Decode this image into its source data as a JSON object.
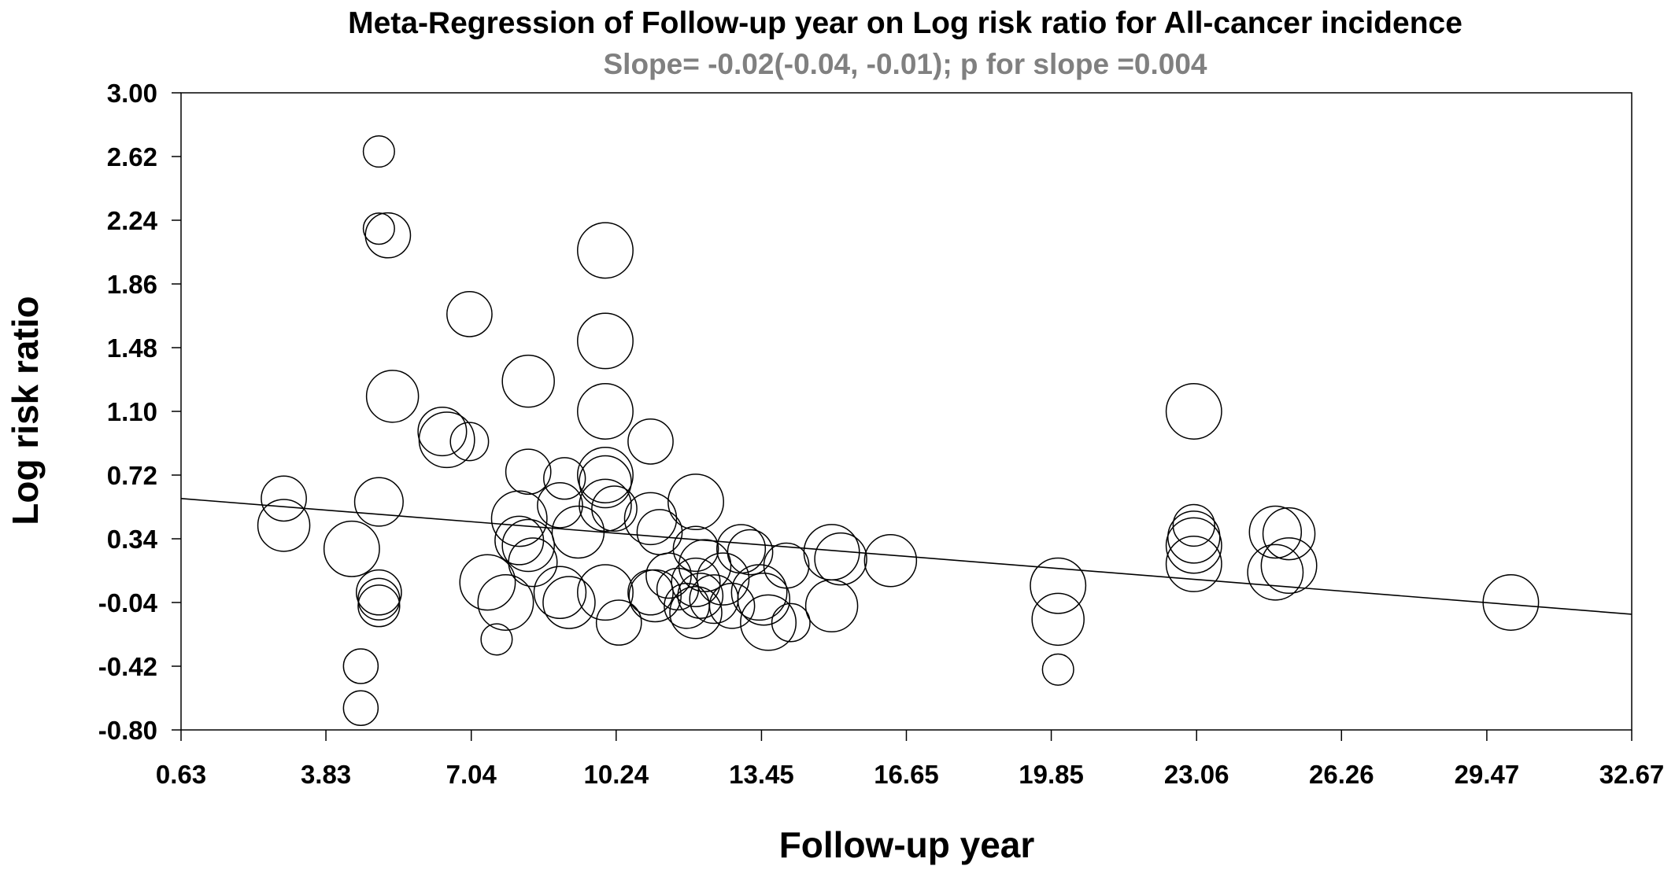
{
  "chart_data": {
    "type": "scatter",
    "title": "Meta-Regression of Follow-up year on Log risk ratio for  All-cancer incidence",
    "subtitle": "Slope= -0.02(-0.04, -0.01); p for slope =0.004",
    "xlabel": "Follow-up year",
    "ylabel": "Log risk ratio",
    "xlim": [
      0.63,
      32.67
    ],
    "ylim": [
      -0.8,
      3.0
    ],
    "x_ticks": [
      "0.63",
      "3.83",
      "7.04",
      "10.24",
      "13.45",
      "16.65",
      "19.85",
      "23.06",
      "26.26",
      "29.47",
      "32.67"
    ],
    "y_ticks": [
      "3.00",
      "2.62",
      "2.24",
      "1.86",
      "1.48",
      "1.10",
      "0.72",
      "0.34",
      "-0.04",
      "-0.42",
      "-0.80"
    ],
    "grid": false,
    "legend": "none",
    "regression_line": {
      "x": [
        0.63,
        32.67
      ],
      "y": [
        0.58,
        -0.11
      ]
    },
    "points": [
      {
        "x": 5.0,
        "y": 2.65,
        "size": 0.9
      },
      {
        "x": 5.0,
        "y": 2.19,
        "size": 0.9
      },
      {
        "x": 5.2,
        "y": 2.15,
        "size": 1.3
      },
      {
        "x": 7.0,
        "y": 1.68,
        "size": 1.3
      },
      {
        "x": 10.0,
        "y": 2.06,
        "size": 1.6
      },
      {
        "x": 10.0,
        "y": 1.52,
        "size": 1.6
      },
      {
        "x": 8.3,
        "y": 1.28,
        "size": 1.5
      },
      {
        "x": 5.3,
        "y": 1.19,
        "size": 1.5
      },
      {
        "x": 6.4,
        "y": 0.98,
        "size": 1.4
      },
      {
        "x": 6.5,
        "y": 0.93,
        "size": 1.6
      },
      {
        "x": 7.0,
        "y": 0.92,
        "size": 1.1
      },
      {
        "x": 10.0,
        "y": 1.1,
        "size": 1.6
      },
      {
        "x": 11.0,
        "y": 0.92,
        "size": 1.3
      },
      {
        "x": 23.0,
        "y": 1.1,
        "size": 1.6
      },
      {
        "x": 2.9,
        "y": 0.58,
        "size": 1.3
      },
      {
        "x": 2.9,
        "y": 0.42,
        "size": 1.5
      },
      {
        "x": 4.4,
        "y": 0.28,
        "size": 1.6
      },
      {
        "x": 5.0,
        "y": 0.56,
        "size": 1.4
      },
      {
        "x": 5.0,
        "y": 0.02,
        "size": 1.3
      },
      {
        "x": 5.0,
        "y": -0.02,
        "size": 1.2
      },
      {
        "x": 5.0,
        "y": -0.06,
        "size": 1.2
      },
      {
        "x": 4.6,
        "y": -0.42,
        "size": 1.0
      },
      {
        "x": 4.6,
        "y": -0.67,
        "size": 1.0
      },
      {
        "x": 8.3,
        "y": 0.74,
        "size": 1.3
      },
      {
        "x": 9.1,
        "y": 0.7,
        "size": 1.2
      },
      {
        "x": 9.0,
        "y": 0.54,
        "size": 1.3
      },
      {
        "x": 8.1,
        "y": 0.46,
        "size": 1.6
      },
      {
        "x": 8.1,
        "y": 0.33,
        "size": 1.4
      },
      {
        "x": 8.3,
        "y": 0.3,
        "size": 1.5
      },
      {
        "x": 8.4,
        "y": 0.2,
        "size": 1.4
      },
      {
        "x": 9.4,
        "y": 0.38,
        "size": 1.5
      },
      {
        "x": 7.4,
        "y": 0.08,
        "size": 1.6
      },
      {
        "x": 7.6,
        "y": -0.26,
        "size": 0.9
      },
      {
        "x": 7.8,
        "y": -0.04,
        "size": 1.6
      },
      {
        "x": 9.0,
        "y": 0.02,
        "size": 1.5
      },
      {
        "x": 9.2,
        "y": -0.04,
        "size": 1.5
      },
      {
        "x": 10.0,
        "y": 0.72,
        "size": 1.6
      },
      {
        "x": 10.0,
        "y": 0.68,
        "size": 1.5
      },
      {
        "x": 10.0,
        "y": 0.54,
        "size": 1.5
      },
      {
        "x": 10.2,
        "y": 0.52,
        "size": 1.3
      },
      {
        "x": 10.0,
        "y": 0.02,
        "size": 1.6
      },
      {
        "x": 10.3,
        "y": -0.16,
        "size": 1.3
      },
      {
        "x": 11.0,
        "y": 0.46,
        "size": 1.5
      },
      {
        "x": 11.2,
        "y": 0.38,
        "size": 1.3
      },
      {
        "x": 11.0,
        "y": 0.02,
        "size": 1.3
      },
      {
        "x": 11.1,
        "y": 0.0,
        "size": 1.5
      },
      {
        "x": 11.4,
        "y": 0.12,
        "size": 1.3
      },
      {
        "x": 11.6,
        "y": 0.04,
        "size": 1.2
      },
      {
        "x": 11.8,
        "y": -0.06,
        "size": 1.3
      },
      {
        "x": 12.0,
        "y": 0.56,
        "size": 1.6
      },
      {
        "x": 12.0,
        "y": 0.28,
        "size": 1.3
      },
      {
        "x": 12.2,
        "y": 0.18,
        "size": 1.5
      },
      {
        "x": 12.0,
        "y": 0.08,
        "size": 1.4
      },
      {
        "x": 12.1,
        "y": 0.0,
        "size": 1.3
      },
      {
        "x": 12.0,
        "y": -0.1,
        "size": 1.5
      },
      {
        "x": 12.4,
        "y": -0.02,
        "size": 1.4
      },
      {
        "x": 12.6,
        "y": 0.1,
        "size": 1.5
      },
      {
        "x": 12.8,
        "y": -0.06,
        "size": 1.3
      },
      {
        "x": 13.0,
        "y": 0.28,
        "size": 1.4
      },
      {
        "x": 13.2,
        "y": 0.26,
        "size": 1.3
      },
      {
        "x": 13.4,
        "y": 0.02,
        "size": 1.6
      },
      {
        "x": 13.5,
        "y": -0.02,
        "size": 1.5
      },
      {
        "x": 13.6,
        "y": -0.16,
        "size": 1.6
      },
      {
        "x": 14.0,
        "y": 0.18,
        "size": 1.3
      },
      {
        "x": 14.1,
        "y": -0.16,
        "size": 1.1
      },
      {
        "x": 15.0,
        "y": 0.26,
        "size": 1.6
      },
      {
        "x": 15.2,
        "y": 0.22,
        "size": 1.5
      },
      {
        "x": 15.0,
        "y": -0.06,
        "size": 1.5
      },
      {
        "x": 16.3,
        "y": 0.21,
        "size": 1.5
      },
      {
        "x": 20.0,
        "y": 0.06,
        "size": 1.6
      },
      {
        "x": 20.0,
        "y": -0.14,
        "size": 1.5
      },
      {
        "x": 20.0,
        "y": -0.44,
        "size": 0.9
      },
      {
        "x": 23.0,
        "y": 0.42,
        "size": 1.2
      },
      {
        "x": 23.0,
        "y": 0.35,
        "size": 1.5
      },
      {
        "x": 23.0,
        "y": 0.3,
        "size": 1.6
      },
      {
        "x": 23.0,
        "y": 0.19,
        "size": 1.6
      },
      {
        "x": 24.8,
        "y": 0.38,
        "size": 1.5
      },
      {
        "x": 25.1,
        "y": 0.37,
        "size": 1.5
      },
      {
        "x": 24.8,
        "y": 0.14,
        "size": 1.6
      },
      {
        "x": 25.1,
        "y": 0.18,
        "size": 1.6
      },
      {
        "x": 30.0,
        "y": -0.04,
        "size": 1.6
      }
    ]
  }
}
